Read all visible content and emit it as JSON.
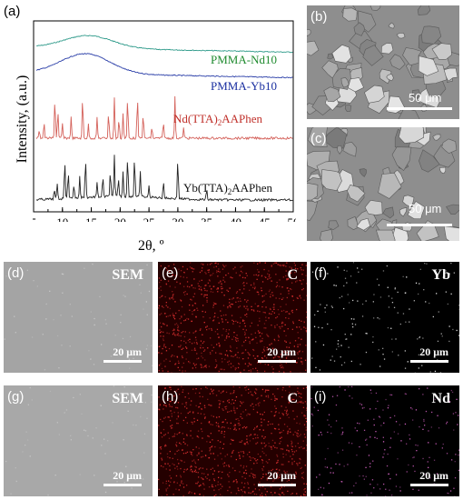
{
  "panels": {
    "a": "(a)",
    "b": "(b)",
    "c": "(c)",
    "d": "(d)",
    "e": "(e)",
    "f": "(f)",
    "g": "(g)",
    "h": "(h)",
    "i": "(i)"
  },
  "chart_data": {
    "type": "line",
    "xlabel": "2θ, º",
    "ylabel": "Intensity, (a.u.)",
    "xlim": [
      5,
      50
    ],
    "xticks": [
      "5",
      "10",
      "15",
      "20",
      "25",
      "30",
      "35",
      "40",
      "45",
      "50"
    ],
    "series": [
      {
        "name": "PMMA-Nd10",
        "color": "#2e9a8a",
        "kind": "amorphous",
        "hump_center": 14.5
      },
      {
        "name": "PMMA-Yb10",
        "color": "#2a3ea8",
        "kind": "amorphous",
        "hump_center": 14.0
      },
      {
        "name": "Nd(TTA)2AAPhen",
        "color": "#d4615a",
        "kind": "crystalline",
        "peaks": [
          6.0,
          6.8,
          8.7,
          9.2,
          10.0,
          11.5,
          13.5,
          14.5,
          16.0,
          18.0,
          19.0,
          19.8,
          20.5,
          21.3,
          23.0,
          24.0,
          25.5,
          27.5,
          29.5,
          31.0
        ]
      },
      {
        "name": "Yb(TTA)2AAPhen",
        "color": "#222222",
        "kind": "crystalline",
        "peaks": [
          8.6,
          9.1,
          10.4,
          11.0,
          12.0,
          13.0,
          14.0,
          16.0,
          17.0,
          18.3,
          19.0,
          19.7,
          20.5,
          21.3,
          22.5,
          23.5,
          25.0,
          27.5,
          30.0,
          35.0
        ]
      }
    ],
    "legend_labels": {
      "pmma_nd": "PMMA-Nd10",
      "pmma_yb": "PMMA-Yb10",
      "nd_main": "Nd(TTA)",
      "nd_sub": "2",
      "nd_tail": "AAPhen",
      "yb_main": "Yb(TTA)",
      "yb_sub": "2",
      "yb_tail": "AAPhen"
    }
  },
  "sem_top": {
    "scale": "50 μm"
  },
  "maps": {
    "d": {
      "label": "SEM",
      "scale": "20 μm",
      "color": "#c8c8c8"
    },
    "e": {
      "label": "C",
      "scale": "20 μm",
      "color": "#e03030"
    },
    "f": {
      "label": "Yb",
      "scale": "20 μm",
      "color": "#e6e6e6"
    },
    "g": {
      "label": "SEM",
      "scale": "20 μm",
      "color": "#c8c8c8"
    },
    "h": {
      "label": "C",
      "scale": "20 μm",
      "color": "#e03030"
    },
    "i": {
      "label": "Nd",
      "scale": "20 μm",
      "color": "#d060c0"
    }
  }
}
